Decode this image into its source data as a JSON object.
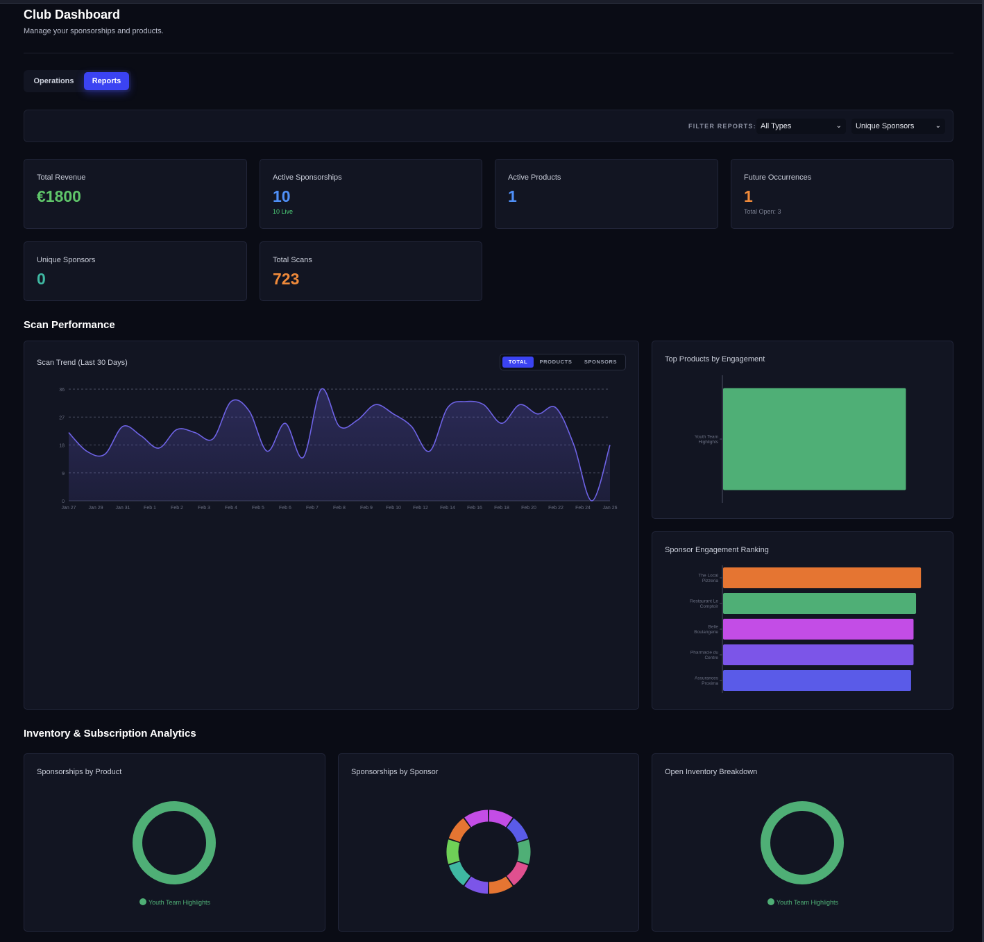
{
  "header": {
    "title": "Club Dashboard",
    "subtitle": "Manage your sponsorships and products."
  },
  "tabs": [
    {
      "label": "Operations",
      "active": false
    },
    {
      "label": "Reports",
      "active": true
    }
  ],
  "filters": {
    "label": "FILTER REPORTS:",
    "type_value": "All Types",
    "metric_value": "Unique Sponsors"
  },
  "stats": {
    "total_revenue": {
      "label": "Total Revenue",
      "value": "€1800",
      "color": "#5fc56a"
    },
    "active_sponsorships": {
      "label": "Active Sponsorships",
      "value": "10",
      "sub": "10 Live",
      "color": "#4f8ff7",
      "sub_color": "#4ccf78"
    },
    "active_products": {
      "label": "Active Products",
      "value": "1",
      "color": "#4f8ff7"
    },
    "future_occurrences": {
      "label": "Future Occurrences",
      "value": "1",
      "sub": "Total Open: 3",
      "color": "#f08a3a",
      "sub_color": "#7b8092"
    },
    "unique_sponsors": {
      "label": "Unique Sponsors",
      "value": "0",
      "color": "#3fb8a2"
    },
    "total_scans": {
      "label": "Total Scans",
      "value": "723",
      "color": "#f08a3a"
    }
  },
  "sections": {
    "scan_performance": "Scan Performance",
    "inventory": "Inventory & Subscription Analytics"
  },
  "scan_trend": {
    "title": "Scan Trend (Last 30 Days)",
    "toggle": [
      "TOTAL",
      "PRODUCTS",
      "SPONSORS"
    ],
    "chart_data": {
      "type": "area",
      "ylim": [
        0,
        36
      ],
      "yticks": [
        0,
        9,
        18,
        27,
        36
      ],
      "grid": true,
      "color": "#6e63e6",
      "x_labels": [
        "Jan 27",
        "Jan 29",
        "Jan 31",
        "Feb 1",
        "Feb 2",
        "Feb 3",
        "Feb 4",
        "Feb 5",
        "Feb 6",
        "Feb 7",
        "Feb 8",
        "Feb 9",
        "Feb 10",
        "Feb 12",
        "Feb 14",
        "Feb 16",
        "Feb 18",
        "Feb 20",
        "Feb 22",
        "Feb 24",
        "Jan 26"
      ],
      "values": [
        22,
        16,
        15,
        24,
        21,
        17,
        23,
        22,
        20,
        32,
        29,
        16,
        25,
        14,
        36,
        24,
        26,
        31,
        28,
        24,
        16,
        30,
        32,
        31,
        25,
        31,
        28,
        30,
        18,
        0,
        18
      ]
    }
  },
  "top_products": {
    "title": "Top Products by Engagement",
    "chart_data": {
      "type": "bar",
      "orientation": "horizontal",
      "categories": [
        "Youth Team Highlights"
      ],
      "values": [
        100
      ],
      "xlim": [
        0,
        115
      ],
      "colors": [
        "#4faf76"
      ]
    }
  },
  "sponsor_ranking": {
    "title": "Sponsor Engagement Ranking",
    "chart_data": {
      "type": "bar",
      "orientation": "horizontal",
      "categories": [
        "The Local Pizzeria",
        "Restaurant Le Comptoir",
        "Belle Boulangerie",
        "Pharmacie du Centre",
        "Assurances Proxima"
      ],
      "values": [
        80,
        78,
        77,
        77,
        76
      ],
      "xlim": [
        0,
        85
      ],
      "colors": [
        "#e57532",
        "#4faf76",
        "#c34de6",
        "#7c55e8",
        "#5a5be8"
      ]
    }
  },
  "donuts": {
    "by_product": {
      "title": "Sponsorships by Product",
      "legend": "Youth Team Highlights",
      "chart_data": {
        "type": "pie",
        "labels": [
          "Youth Team Highlights"
        ],
        "values": [
          1
        ],
        "colors": [
          "#4faf76"
        ]
      }
    },
    "by_sponsor": {
      "title": "Sponsorships by Sponsor",
      "chart_data": {
        "type": "pie",
        "values": [
          1,
          1,
          1,
          1,
          1,
          1,
          1,
          1,
          1,
          1
        ],
        "colors": [
          "#c34de6",
          "#5a5be8",
          "#4faf76",
          "#e0508f",
          "#e57532",
          "#7c55e8",
          "#3fb8a2",
          "#6fd057",
          "#e57532",
          "#c34de6"
        ]
      }
    },
    "open_inventory": {
      "title": "Open Inventory Breakdown",
      "legend": "Youth Team Highlights",
      "chart_data": {
        "type": "pie",
        "labels": [
          "Youth Team Highlights"
        ],
        "values": [
          1
        ],
        "colors": [
          "#4faf76"
        ]
      }
    }
  }
}
